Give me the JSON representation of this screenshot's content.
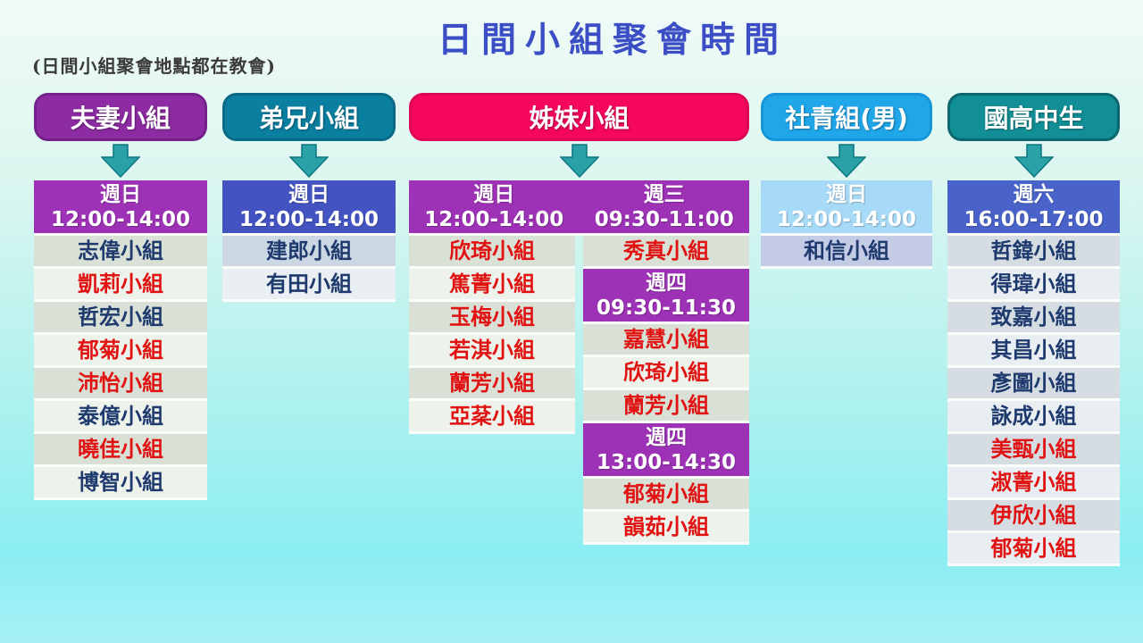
{
  "title": "日間小組聚會時間",
  "title_color": "#3c4ec5",
  "note": "(日間小組聚會地點都在教會)",
  "arrow": {
    "name": "down-arrow-icon",
    "fill": "#2aa1a7",
    "stroke": "#0e7583"
  },
  "text_colors": {
    "blue": "#1f3a6e",
    "red": "#e11212"
  },
  "columns": [
    {
      "id": "couples",
      "label": "夫妻小組",
      "pill_bg": "#8d2ba2",
      "pill_border": "#75218c",
      "row_dark": "#d9e1d7",
      "row_light": "#edf2ea",
      "blocks": [
        {
          "type": "header",
          "day": "週日",
          "time": "12:00-14:00",
          "bg": "#9d32b6"
        },
        {
          "type": "group",
          "name": "志偉小組",
          "color": "blue"
        },
        {
          "type": "group",
          "name": "凱莉小組",
          "color": "red"
        },
        {
          "type": "group",
          "name": "哲宏小組",
          "color": "blue"
        },
        {
          "type": "group",
          "name": "郁菊小組",
          "color": "red"
        },
        {
          "type": "group",
          "name": "沛怡小組",
          "color": "red"
        },
        {
          "type": "group",
          "name": "泰億小組",
          "color": "blue"
        },
        {
          "type": "group",
          "name": "曉佳小組",
          "color": "red"
        },
        {
          "type": "group",
          "name": "博智小組",
          "color": "blue"
        }
      ]
    },
    {
      "id": "brothers",
      "label": "弟兄小組",
      "pill_bg": "#0a7fa0",
      "pill_border": "#086a87",
      "row_dark": "#cbd7e3",
      "row_light": "#e9eff3",
      "blocks": [
        {
          "type": "header",
          "day": "週日",
          "time": "12:00-14:00",
          "bg": "#4354c2"
        },
        {
          "type": "group",
          "name": "建郎小組",
          "color": "blue"
        },
        {
          "type": "group",
          "name": "有田小組",
          "color": "blue"
        }
      ]
    },
    {
      "id": "sisters",
      "label": "姊妹小組",
      "pill_bg": "#f5075d",
      "pill_border": "#dd0651",
      "row_dark": "#d9e1d7",
      "row_light": "#edf2ea",
      "span_header": {
        "bg": "#9d32b6",
        "left": {
          "day": "週日",
          "time": "12:00-14:00"
        },
        "right": {
          "day": "週三",
          "time": "09:30-11:00"
        }
      },
      "left_blocks": [
        {
          "type": "group",
          "name": "欣琦小組",
          "color": "red"
        },
        {
          "type": "group",
          "name": "篤菁小組",
          "color": "red"
        },
        {
          "type": "group",
          "name": "玉梅小組",
          "color": "red"
        },
        {
          "type": "group",
          "name": "若淇小組",
          "color": "red"
        },
        {
          "type": "group",
          "name": "蘭芳小組",
          "color": "red"
        },
        {
          "type": "group",
          "name": "亞棻小組",
          "color": "red"
        }
      ],
      "right_blocks": [
        {
          "type": "group",
          "name": "秀真小組",
          "color": "red"
        },
        {
          "type": "header",
          "day": "週四",
          "time": "09:30-11:30",
          "bg": "#9d32b6"
        },
        {
          "type": "group",
          "name": "嘉慧小組",
          "color": "red"
        },
        {
          "type": "group",
          "name": "欣琦小組",
          "color": "red"
        },
        {
          "type": "group",
          "name": "蘭芳小組",
          "color": "red"
        },
        {
          "type": "header",
          "day": "週四",
          "time": "13:00-14:30",
          "bg": "#9d32b6"
        },
        {
          "type": "group",
          "name": "郁菊小組",
          "color": "red"
        },
        {
          "type": "group",
          "name": "韻茹小組",
          "color": "red"
        }
      ]
    },
    {
      "id": "young-adults-men",
      "label": "社青組(男)",
      "pill_bg": "#20a7ea",
      "pill_border": "#1595d8",
      "row_dark": "#c3cce4",
      "row_light": "#dde3f0",
      "blocks": [
        {
          "type": "header",
          "day": "週日",
          "time": "12:00-14:00",
          "bg": "#a7daf7"
        },
        {
          "type": "group",
          "name": "和信小組",
          "color": "blue"
        }
      ]
    },
    {
      "id": "students",
      "label": "國高中生",
      "pill_bg": "#128f96",
      "pill_border": "#0b666e",
      "row_dark": "#d5dde3",
      "row_light": "#e8eef1",
      "blocks": [
        {
          "type": "header",
          "day": "週六",
          "time": "16:00-17:00",
          "bg": "#4a63ca"
        },
        {
          "type": "group",
          "name": "哲鍏小組",
          "color": "blue"
        },
        {
          "type": "group",
          "name": "得瑋小組",
          "color": "blue"
        },
        {
          "type": "group",
          "name": "致嘉小組",
          "color": "blue"
        },
        {
          "type": "group",
          "name": "其昌小組",
          "color": "blue"
        },
        {
          "type": "group",
          "name": "彥圖小組",
          "color": "blue"
        },
        {
          "type": "group",
          "name": "詠成小組",
          "color": "blue"
        },
        {
          "type": "group",
          "name": "美甄小組",
          "color": "red"
        },
        {
          "type": "group",
          "name": "淑菁小組",
          "color": "red"
        },
        {
          "type": "group",
          "name": "伊欣小組",
          "color": "red"
        },
        {
          "type": "group",
          "name": "郁菊小組",
          "color": "red"
        }
      ]
    }
  ]
}
